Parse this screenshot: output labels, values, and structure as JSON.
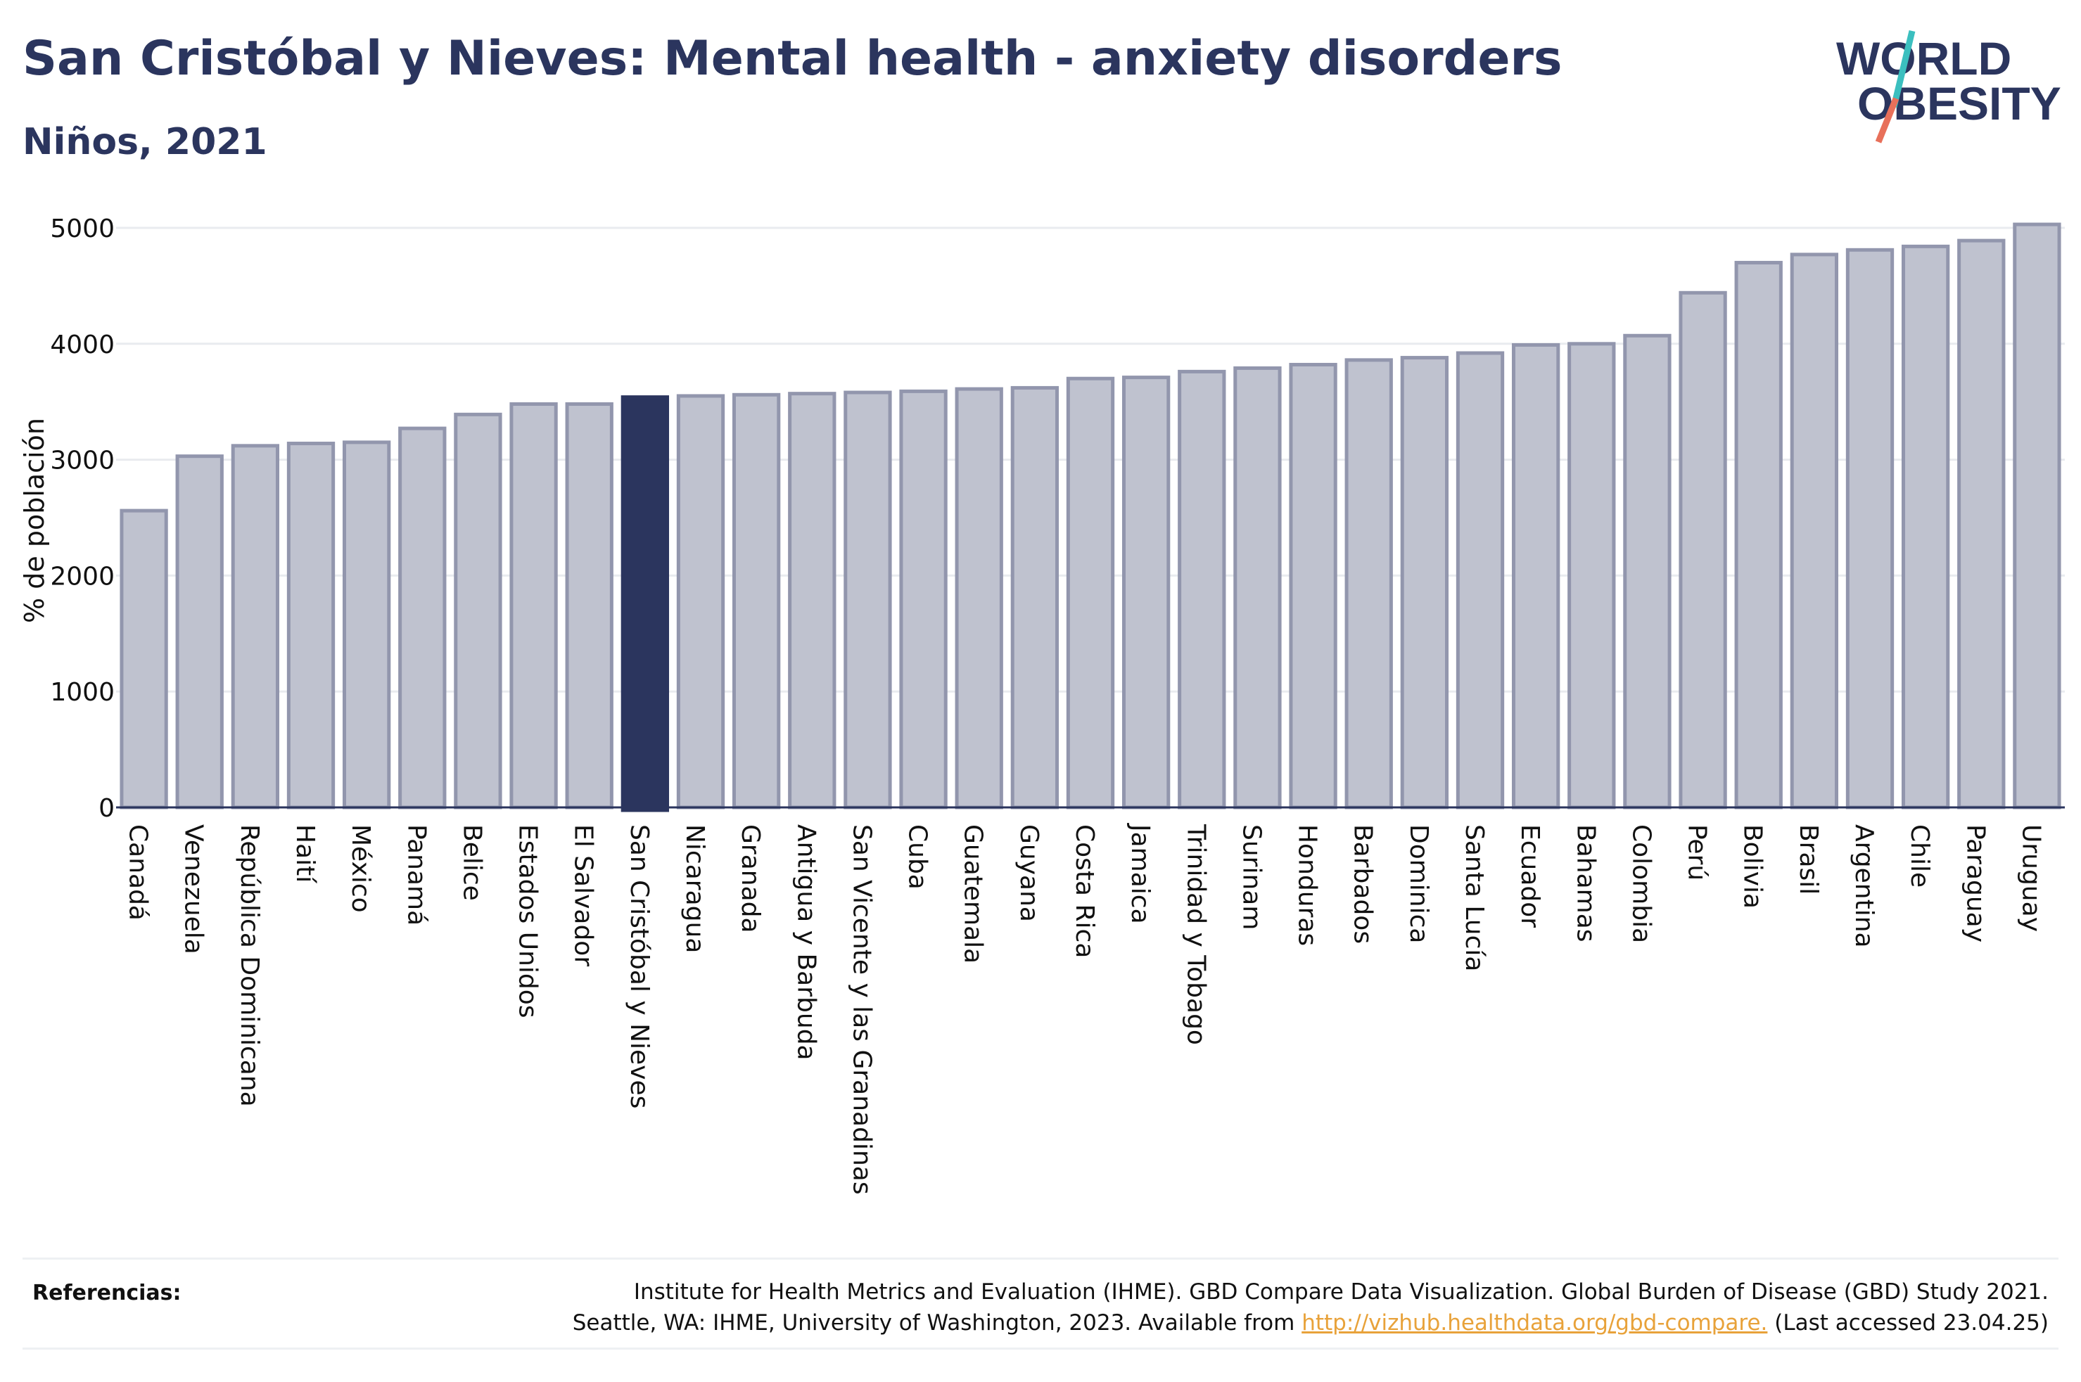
{
  "header": {
    "title": "San Cristóbal y Nieves: Mental health - anxiety disorders",
    "subtitle": "Niños, 2021"
  },
  "logo": {
    "line1": "WORLD",
    "line2": "OBESITY",
    "colors": {
      "text": "#2b355e",
      "slash_top": "#3bbfbf",
      "slash_bottom": "#e8705a"
    }
  },
  "chart_data": {
    "type": "bar",
    "title": "San Cristóbal y Nieves: Mental health - anxiety disorders",
    "subtitle": "Niños, 2021",
    "xlabel": "",
    "ylabel": "% de población",
    "ylim": [
      0,
      5200
    ],
    "yticks": [
      0,
      1000,
      2000,
      3000,
      4000,
      5000
    ],
    "grid": true,
    "highlight": "San Cristóbal y Nieves",
    "colors": {
      "bar": "#bfc2cf",
      "bar_border": "#9296ad",
      "highlight": "#2b355e",
      "grid": "#e9ebef",
      "axis": "#2b355e"
    },
    "categories": [
      "Canadá",
      "Venezuela",
      "República Dominicana",
      "Haití",
      "México",
      "Panamá",
      "Belice",
      "Estados Unidos",
      "El Salvador",
      "San Cristóbal y Nieves",
      "Nicaragua",
      "Granada",
      "Antigua y Barbuda",
      "San Vicente y las Granadinas",
      "Cuba",
      "Guatemala",
      "Guyana",
      "Costa Rica",
      "Jamaica",
      "Trinidad y Tobago",
      "Surinam",
      "Honduras",
      "Barbados",
      "Dominica",
      "Santa Lucía",
      "Ecuador",
      "Bahamas",
      "Colombia",
      "Perú",
      "Bolivia",
      "Brasil",
      "Argentina",
      "Chile",
      "Paraguay",
      "Uruguay"
    ],
    "values": [
      2560,
      3030,
      3120,
      3140,
      3150,
      3270,
      3390,
      3480,
      3480,
      3540,
      3550,
      3560,
      3570,
      3580,
      3590,
      3610,
      3620,
      3700,
      3710,
      3760,
      3790,
      3820,
      3860,
      3880,
      3920,
      3990,
      4000,
      4070,
      4440,
      4700,
      4770,
      4810,
      4840,
      4890,
      5030
    ]
  },
  "references": {
    "label": "Referencias:",
    "line1": "Institute for Health Metrics and Evaluation (IHME). GBD Compare Data Visualization. Global Burden of Disease (GBD) Study 2021.",
    "line2_before": "Seattle, WA: IHME, University of Washington, 2023. Available from ",
    "link": "http://vizhub.healthdata.org/gbd-compare.",
    "line2_after": " (Last accessed 23.04.25)"
  }
}
